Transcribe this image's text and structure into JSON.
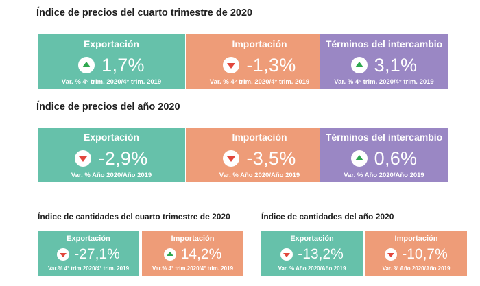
{
  "sections": {
    "q4_prices": {
      "title": "Índice de precios del cuarto trimestre de 2020",
      "cards": [
        {
          "label": "Exportación",
          "value": "1,7%",
          "direction": "up",
          "note": "Var. % 4° trim. 2020/4° trim. 2019"
        },
        {
          "label": "Importación",
          "value": "-1,3%",
          "direction": "down",
          "note": "Var. % 4° trim. 2020/4° trim. 2019"
        },
        {
          "label": "Términos del intercambio",
          "value": "3,1%",
          "direction": "up",
          "note": "Var. % 4° trim. 2020/4° trim. 2019"
        }
      ]
    },
    "year_prices": {
      "title": "Índice de precios del año 2020",
      "cards": [
        {
          "label": "Exportación",
          "value": "-2,9%",
          "direction": "down",
          "note": "Var. % Año 2020/Año 2019"
        },
        {
          "label": "Importación",
          "value": "-3,5%",
          "direction": "down",
          "note": "Var. % Año 2020/Año 2019"
        },
        {
          "label": "Términos del intercambio",
          "value": "0,6%",
          "direction": "up",
          "note": "Var. % Año 2020/Año 2019"
        }
      ]
    },
    "q4_quantities": {
      "title": "Índice de cantidades del cuarto trimestre de 2020",
      "cards": [
        {
          "label": "Exportación",
          "value": "-27,1%",
          "direction": "down",
          "note": "Var.% 4° trim.2020/4° trim. 2019"
        },
        {
          "label": "Importación",
          "value": "14,2%",
          "direction": "up",
          "note": "Var.% 4° trim.2020/4° trim. 2019"
        }
      ]
    },
    "year_quantities": {
      "title": "Índice de cantidades del año 2020",
      "cards": [
        {
          "label": "Exportación",
          "value": "-13,2%",
          "direction": "down",
          "note": "Var. % Año 2020/Año 2019"
        },
        {
          "label": "Importación",
          "value": "-10,7%",
          "direction": "down",
          "note": "Var. % Año 2020/Año 2019"
        }
      ]
    }
  },
  "colors": {
    "export": "#66c1aa",
    "import": "#ee9c78",
    "terms": "#9a87c4",
    "up_arrow": "#2fa84f",
    "down_arrow": "#e2473d"
  },
  "icons": {
    "up": "arrow-up-icon",
    "down": "arrow-down-icon"
  }
}
